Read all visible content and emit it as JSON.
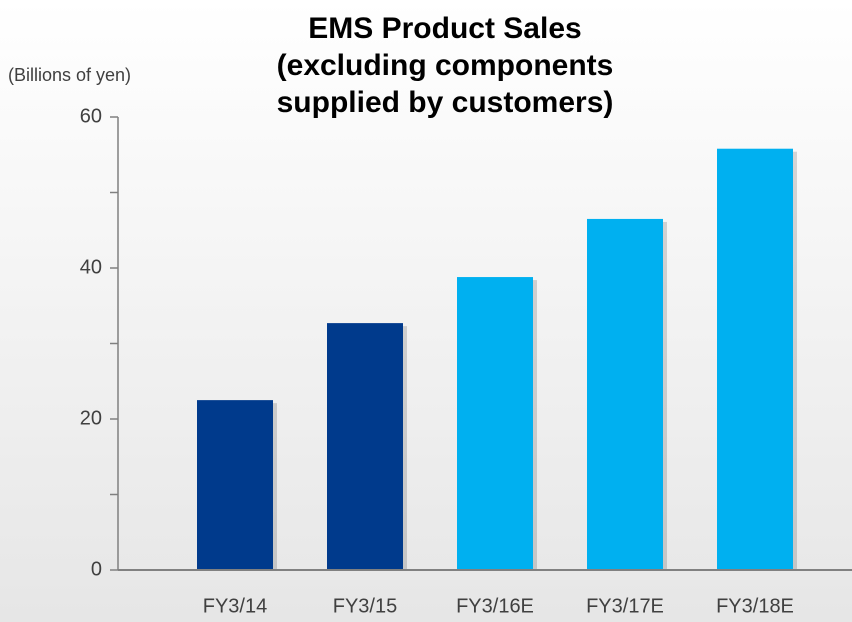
{
  "chart_data": {
    "type": "bar",
    "title": [
      "EMS Product Sales",
      "(excluding components",
      "supplied by customers)"
    ],
    "y_axis_label": "(Billions of yen)",
    "categories": [
      "FY3/14",
      "FY3/15",
      "FY3/16E",
      "FY3/17E",
      "FY3/18E"
    ],
    "values": [
      22.5,
      32.7,
      38.8,
      46.5,
      55.8
    ],
    "colors": [
      "#003a8c",
      "#003a8c",
      "#00b0f0",
      "#00b0f0",
      "#00b0f0"
    ],
    "ylim": [
      0,
      60
    ],
    "yticks": [
      0,
      20,
      40,
      60
    ],
    "minor_yticks": [
      10,
      30,
      50
    ],
    "grid": false
  }
}
